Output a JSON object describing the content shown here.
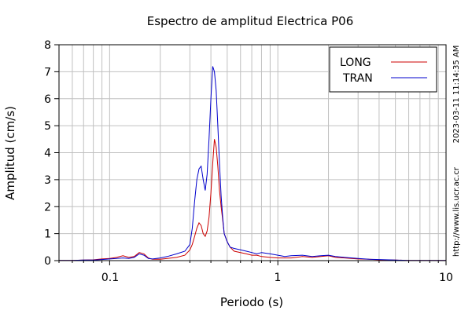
{
  "chart_data": {
    "type": "line",
    "title": "Espectro de amplitud Electrica P06",
    "xlabel": "Periodo (s)",
    "ylabel": "Amplitud (cm/s)",
    "x_scale": "log",
    "xlim": [
      0.05,
      10
    ],
    "ylim": [
      0,
      8
    ],
    "x_tick_labels": [
      "0.1",
      "1",
      "10"
    ],
    "x_tick_values": [
      0.1,
      1,
      10
    ],
    "y_tick_values": [
      0,
      1,
      2,
      3,
      4,
      5,
      6,
      7,
      8
    ],
    "grid": true,
    "legend_position": "top-right",
    "side_text": {
      "timestamp": "2023-03-11 11:14:35 AM",
      "url": "http://www.lis.ucr.ac.cr"
    },
    "series": [
      {
        "name": "LONG",
        "color": "#cc0000",
        "x": [
          0.05,
          0.06,
          0.07,
          0.08,
          0.09,
          0.1,
          0.11,
          0.12,
          0.13,
          0.14,
          0.15,
          0.16,
          0.17,
          0.18,
          0.2,
          0.22,
          0.25,
          0.28,
          0.3,
          0.31,
          0.32,
          0.33,
          0.34,
          0.35,
          0.36,
          0.37,
          0.38,
          0.39,
          0.4,
          0.41,
          0.42,
          0.43,
          0.44,
          0.45,
          0.46,
          0.47,
          0.48,
          0.5,
          0.52,
          0.55,
          0.6,
          0.65,
          0.7,
          0.75,
          0.8,
          0.9,
          1.0,
          1.1,
          1.2,
          1.4,
          1.6,
          1.8,
          2.0,
          2.2,
          2.5,
          3.0,
          3.5,
          4.0,
          5.0,
          6.0,
          8.0,
          10.0
        ],
        "values": [
          0.01,
          0.01,
          0.02,
          0.03,
          0.06,
          0.08,
          0.12,
          0.18,
          0.12,
          0.15,
          0.3,
          0.25,
          0.1,
          0.05,
          0.05,
          0.08,
          0.12,
          0.2,
          0.4,
          0.6,
          0.9,
          1.2,
          1.4,
          1.3,
          1.0,
          0.9,
          1.1,
          1.6,
          2.5,
          3.6,
          4.5,
          4.2,
          3.5,
          2.6,
          2.0,
          1.5,
          1.0,
          0.7,
          0.5,
          0.35,
          0.3,
          0.25,
          0.2,
          0.2,
          0.15,
          0.12,
          0.1,
          0.1,
          0.1,
          0.15,
          0.12,
          0.15,
          0.18,
          0.12,
          0.1,
          0.06,
          0.05,
          0.03,
          0.02,
          0.01,
          0.01,
          0.01
        ]
      },
      {
        "name": "TRAN",
        "color": "#0000cc",
        "x": [
          0.05,
          0.06,
          0.07,
          0.08,
          0.09,
          0.1,
          0.11,
          0.12,
          0.13,
          0.14,
          0.15,
          0.16,
          0.17,
          0.18,
          0.2,
          0.22,
          0.25,
          0.28,
          0.3,
          0.31,
          0.32,
          0.33,
          0.34,
          0.35,
          0.36,
          0.37,
          0.38,
          0.39,
          0.4,
          0.41,
          0.42,
          0.43,
          0.44,
          0.45,
          0.46,
          0.47,
          0.48,
          0.5,
          0.52,
          0.55,
          0.6,
          0.65,
          0.7,
          0.75,
          0.8,
          0.9,
          1.0,
          1.1,
          1.2,
          1.4,
          1.6,
          1.8,
          2.0,
          2.2,
          2.5,
          3.0,
          3.5,
          4.0,
          5.0,
          6.0,
          8.0,
          10.0
        ],
        "values": [
          0.01,
          0.01,
          0.02,
          0.02,
          0.04,
          0.06,
          0.08,
          0.1,
          0.08,
          0.12,
          0.25,
          0.2,
          0.08,
          0.06,
          0.1,
          0.15,
          0.25,
          0.35,
          0.6,
          1.2,
          2.2,
          3.0,
          3.4,
          3.5,
          3.0,
          2.6,
          3.2,
          4.5,
          6.0,
          7.2,
          7.0,
          6.3,
          5.0,
          3.6,
          2.4,
          1.6,
          1.0,
          0.7,
          0.5,
          0.45,
          0.4,
          0.35,
          0.3,
          0.25,
          0.3,
          0.25,
          0.2,
          0.15,
          0.18,
          0.2,
          0.15,
          0.18,
          0.2,
          0.15,
          0.12,
          0.08,
          0.05,
          0.04,
          0.02,
          0.01,
          0.01,
          0.01
        ]
      }
    ]
  }
}
